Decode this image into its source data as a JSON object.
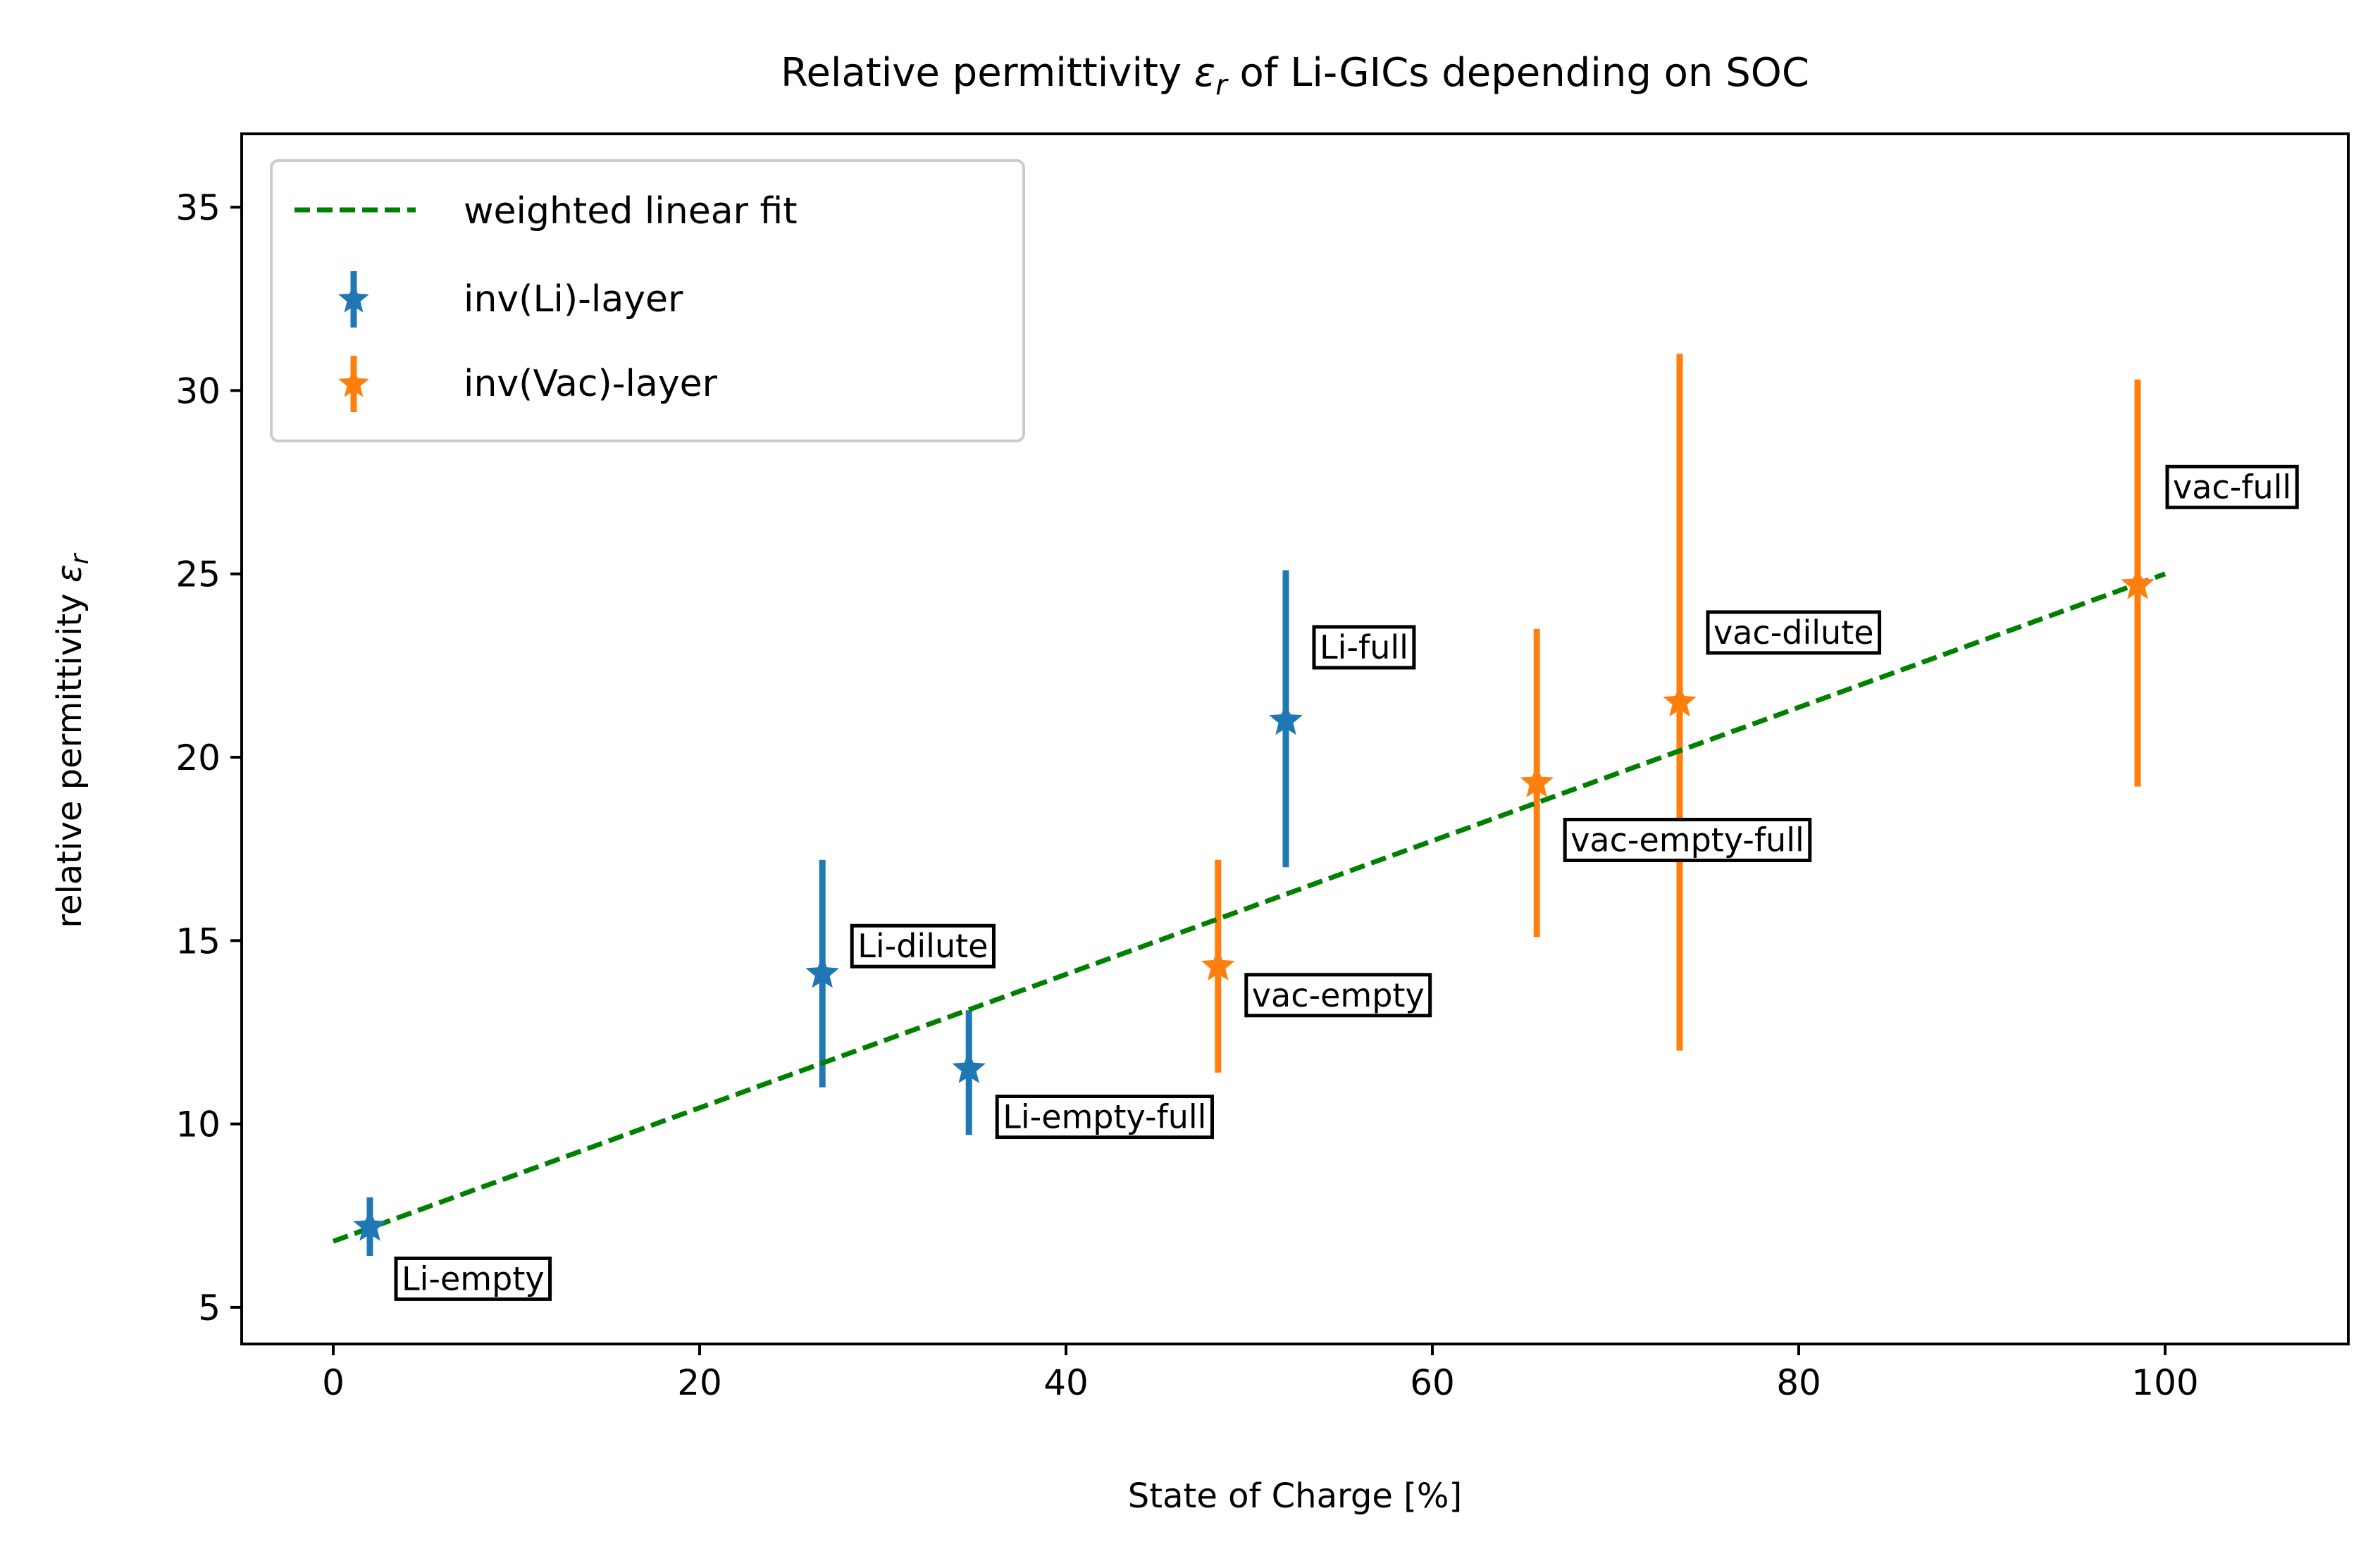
{
  "chart_data": {
    "type": "scatter",
    "title_prefix": "Relative permittivity ",
    "title_symbol": "ε",
    "title_subscript": "r",
    "title_suffix": " of Li-GICs depending on SOC",
    "xlabel": "State of Charge [%]",
    "ylabel_prefix": "relative permittivity ",
    "ylabel_symbol": "ε",
    "ylabel_subscript": "r",
    "xlim": [
      -5,
      110
    ],
    "ylim": [
      4,
      37
    ],
    "xticks": [
      0,
      20,
      40,
      60,
      80,
      100
    ],
    "yticks": [
      5,
      10,
      15,
      20,
      25,
      30,
      35
    ],
    "grid": false,
    "legend_position": "top-left",
    "fit": {
      "label": "weighted linear fit",
      "color": "#008000",
      "x": [
        0,
        100
      ],
      "y": [
        6.8,
        25.0
      ]
    },
    "series": [
      {
        "name": "inv(Li)-layer",
        "color": "#1f77b4",
        "points": [
          {
            "label": "Li-empty",
            "x": 2,
            "y": 7.2,
            "yerr_low": 6.4,
            "yerr_high": 8.0
          },
          {
            "label": "Li-dilute",
            "x": 26.7,
            "y": 14.1,
            "yerr_low": 11.0,
            "yerr_high": 17.2
          },
          {
            "label": "Li-empty-full",
            "x": 34.7,
            "y": 11.5,
            "yerr_low": 9.7,
            "yerr_high": 13.1
          },
          {
            "label": "Li-full",
            "x": 52,
            "y": 21.0,
            "yerr_low": 17.0,
            "yerr_high": 25.1
          }
        ]
      },
      {
        "name": "inv(Vac)-layer",
        "color": "#ff7f0e",
        "points": [
          {
            "label": "vac-empty",
            "x": 48.3,
            "y": 14.3,
            "yerr_low": 11.4,
            "yerr_high": 17.2
          },
          {
            "label": "vac-empty-full",
            "x": 65.7,
            "y": 19.3,
            "yerr_low": 15.1,
            "yerr_high": 23.5
          },
          {
            "label": "vac-dilute",
            "x": 73.5,
            "y": 21.5,
            "yerr_low": 12.0,
            "yerr_high": 31.0
          },
          {
            "label": "vac-full",
            "x": 98.5,
            "y": 24.7,
            "yerr_low": 19.2,
            "yerr_high": 30.3
          }
        ]
      }
    ]
  }
}
